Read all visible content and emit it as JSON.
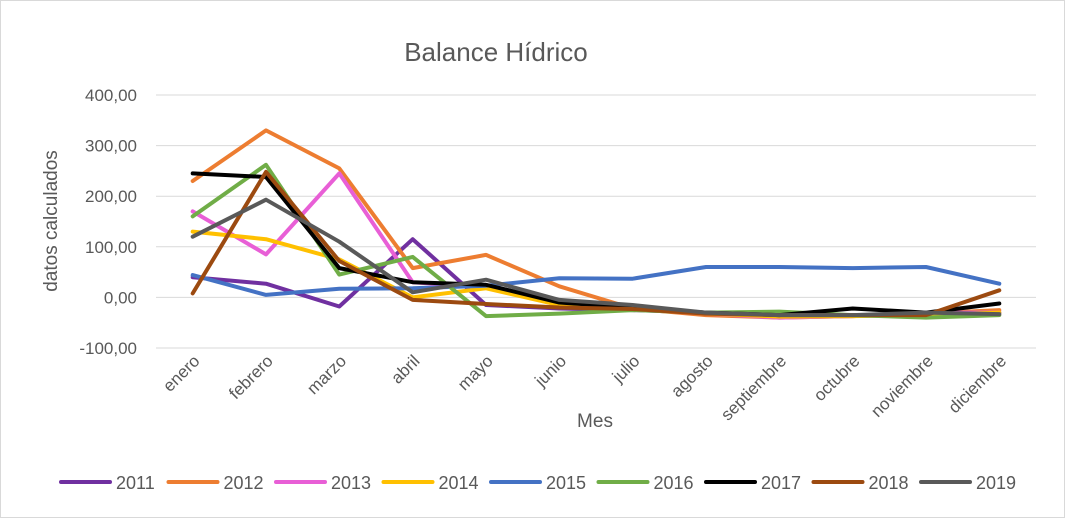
{
  "chart_data": {
    "type": "line",
    "title": "Balance Hídrico",
    "xlabel": "Mes",
    "ylabel": "datos calculados",
    "ylim": [
      -100,
      400
    ],
    "yticks": [
      -100,
      0,
      100,
      200,
      300,
      400
    ],
    "ytick_labels": [
      "-100,00",
      "0,00",
      "100,00",
      "200,00",
      "300,00",
      "400,00"
    ],
    "grid": true,
    "legend": "bottom",
    "categories": [
      "enero",
      "febrero",
      "marzo",
      "abril",
      "mayo",
      "junio",
      "julio",
      "agosto",
      "septiembre",
      "octubre",
      "noviembre",
      "diciembre"
    ],
    "series": [
      {
        "name": "2011",
        "color": "#7030a0",
        "values": [
          40,
          27,
          -18,
          115,
          -15,
          -22,
          -25,
          -30,
          -35,
          -35,
          -35,
          -30
        ]
      },
      {
        "name": "2012",
        "color": "#ed7d31",
        "values": [
          230,
          330,
          255,
          58,
          84,
          22,
          -22,
          -35,
          -40,
          -37,
          -32,
          -25
        ]
      },
      {
        "name": "2013",
        "color": "#e85fd6",
        "values": [
          170,
          85,
          245,
          30,
          20,
          -15,
          -22,
          -32,
          -40,
          -37,
          -30,
          -30
        ]
      },
      {
        "name": "2014",
        "color": "#ffc000",
        "values": [
          130,
          115,
          75,
          0,
          18,
          -15,
          -20,
          -32,
          -38,
          -37,
          -35,
          -30
        ]
      },
      {
        "name": "2015",
        "color": "#4472c4",
        "values": [
          44,
          5,
          17,
          18,
          23,
          38,
          37,
          60,
          60,
          58,
          60,
          27
        ]
      },
      {
        "name": "2016",
        "color": "#70ad47",
        "values": [
          160,
          262,
          45,
          80,
          -37,
          -32,
          -25,
          -30,
          -28,
          -35,
          -40,
          -35
        ]
      },
      {
        "name": "2017",
        "color": "#000000",
        "values": [
          245,
          238,
          58,
          30,
          25,
          -10,
          -20,
          -30,
          -35,
          -22,
          -30,
          -12
        ]
      },
      {
        "name": "2018",
        "color": "#9c4a10",
        "values": [
          8,
          248,
          72,
          -5,
          -13,
          -20,
          -23,
          -32,
          -35,
          -35,
          -35,
          14
        ]
      },
      {
        "name": "2019",
        "color": "#595959",
        "values": [
          120,
          193,
          110,
          10,
          35,
          -5,
          -15,
          -30,
          -35,
          -35,
          -30,
          -33
        ]
      }
    ]
  }
}
